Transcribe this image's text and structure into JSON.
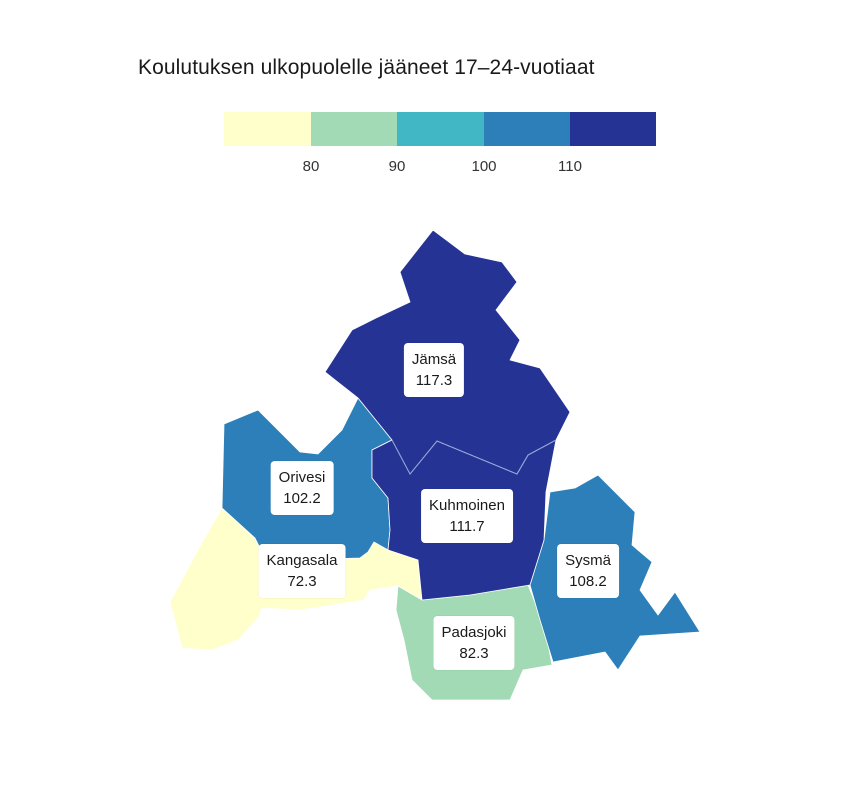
{
  "title": "Koulutuksen ulkopuolelle jääneet 17–24-vuotiaat",
  "legend": {
    "bins": [
      {
        "color": "#ffffcc"
      },
      {
        "color": "#a1dab4"
      },
      {
        "color": "#41b6c4"
      },
      {
        "color": "#2c7fb8"
      },
      {
        "color": "#253494"
      }
    ],
    "ticks": [
      "80",
      "90",
      "100",
      "110"
    ]
  },
  "regions": [
    {
      "name": "Jämsä",
      "value": "117.3",
      "color": "#253494"
    },
    {
      "name": "Kuhmoinen",
      "value": "111.7",
      "color": "#253494"
    },
    {
      "name": "Orivesi",
      "value": "102.2",
      "color": "#2c7fb8"
    },
    {
      "name": "Sysmä",
      "value": "108.2",
      "color": "#2c7fb8"
    },
    {
      "name": "Kangasala",
      "value": "72.3",
      "color": "#ffffcc"
    },
    {
      "name": "Padasjoki",
      "value": "82.3",
      "color": "#a1dab4"
    }
  ]
}
